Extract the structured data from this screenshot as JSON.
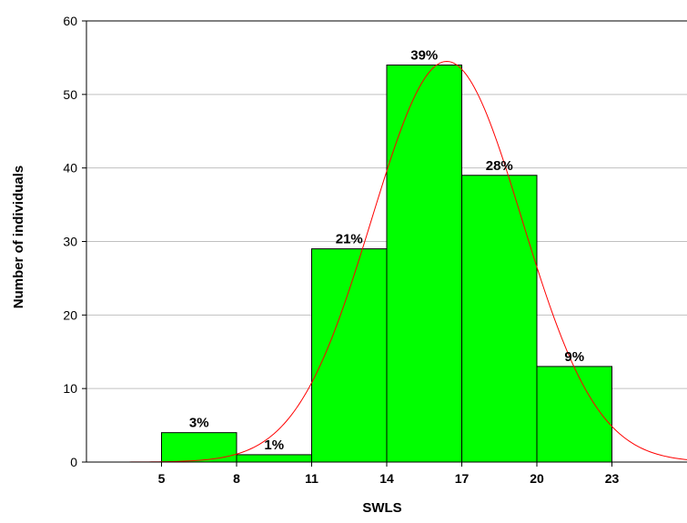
{
  "chart_data": {
    "type": "bar",
    "xlabel": "SWLS",
    "ylabel": "Number of individuals",
    "ylim": [
      0,
      60
    ],
    "xlim": [
      2,
      26
    ],
    "yticks": [
      0,
      10,
      20,
      30,
      40,
      50,
      60
    ],
    "xticks": [
      "5",
      "8",
      "11",
      "14",
      "17",
      "20",
      "23"
    ],
    "xtick_values": [
      5,
      8,
      11,
      14,
      17,
      20,
      23
    ],
    "grid": "horizontal",
    "bins": [
      {
        "from": 2,
        "to": 5,
        "value": 0,
        "label": ""
      },
      {
        "from": 5,
        "to": 8,
        "value": 4,
        "label": "3%"
      },
      {
        "from": 8,
        "to": 11,
        "value": 1,
        "label": "1%"
      },
      {
        "from": 11,
        "to": 14,
        "value": 29,
        "label": "21%"
      },
      {
        "from": 14,
        "to": 17,
        "value": 54,
        "label": "39%"
      },
      {
        "from": 17,
        "to": 20,
        "value": 39,
        "label": "28%"
      },
      {
        "from": 20,
        "to": 23,
        "value": 13,
        "label": "9%"
      }
    ],
    "normal_curve": {
      "mean": 16.4,
      "sd": 3.0,
      "peak": 54.5
    },
    "colors": {
      "bar": "#00ff00",
      "curve": "#ff0000",
      "grid": "#c0c0c0",
      "axis": "#000000"
    }
  }
}
